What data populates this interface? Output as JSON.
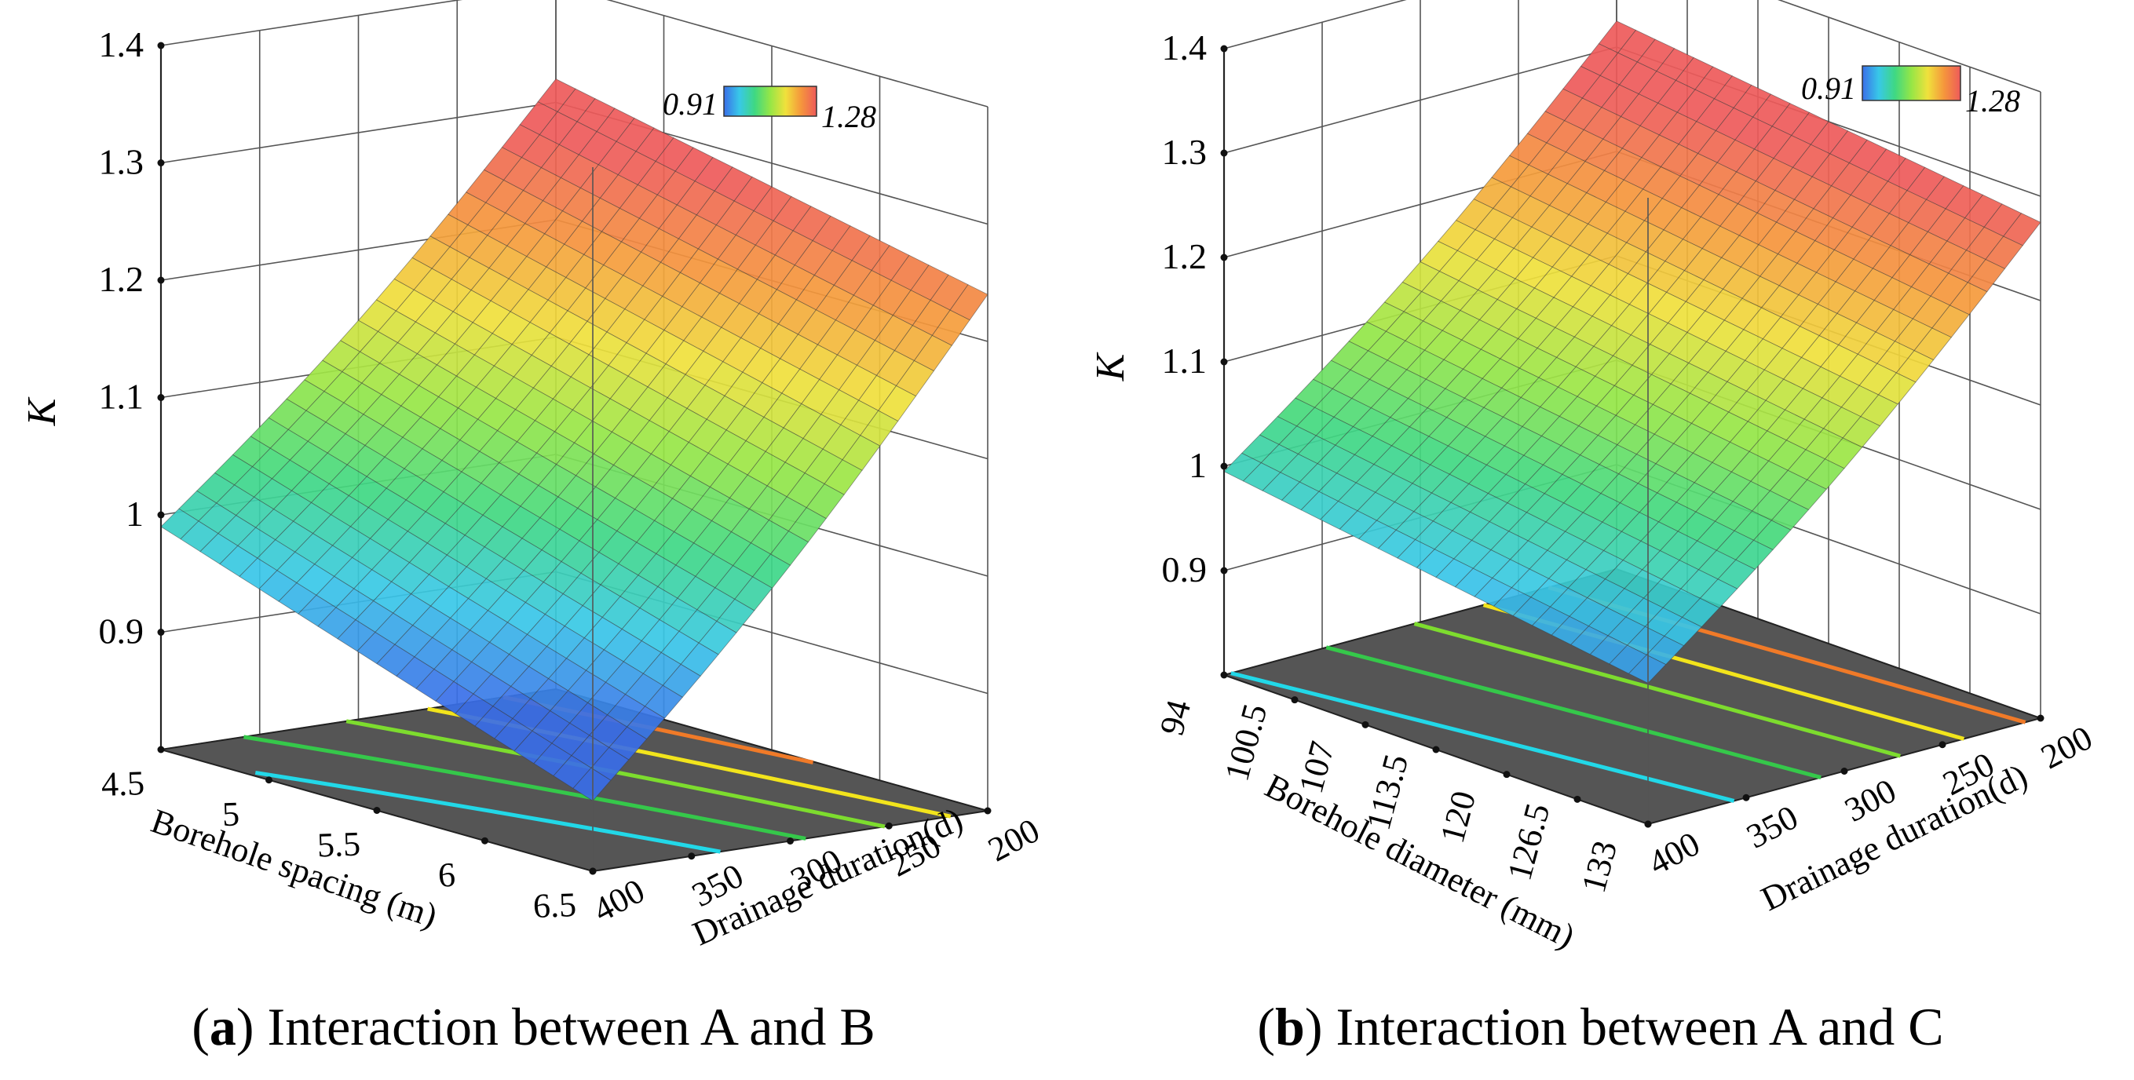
{
  "colors": {
    "surface_low": "#3a6ee8",
    "surface_mid": "#3fd882",
    "surface_high": "#ee5a5a",
    "floor": "#555555",
    "grid": "#555555"
  },
  "chart_data": [
    {
      "type": "surface3d",
      "panel_label": "a",
      "caption": "Interaction between A and B",
      "zlabel": "K",
      "x": {
        "label": "Borehole spacing (m)",
        "ticks": [
          "4.5",
          "5",
          "5.5",
          "6",
          "6.5"
        ],
        "range": [
          4.5,
          6.5
        ]
      },
      "y": {
        "label": "Drainage duration(d)",
        "ticks": [
          "400",
          "350",
          "300",
          "250",
          "200"
        ],
        "range": [
          400,
          200
        ]
      },
      "z": {
        "ticks": [
          "0.9",
          "1",
          "1.1",
          "1.2",
          "1.3",
          "1.4"
        ],
        "range": [
          0.8,
          1.4
        ]
      },
      "colorbar": {
        "min_label": "0.91",
        "max_label": "1.28",
        "min": 0.91,
        "max": 1.28
      },
      "surface_corners": {
        "x_min_y_start": 0.99,
        "x_max_y_start": 0.86,
        "x_min_y_end": 1.32,
        "x_max_y_end": 1.24
      },
      "contours": [
        {
          "level": 0.97,
          "color": "#22d8e8"
        },
        {
          "level": 1.05,
          "color": "#35c84a"
        },
        {
          "level": 1.13,
          "color": "#7ddc2e"
        },
        {
          "level": 1.2,
          "color": "#f2e41c"
        },
        {
          "level": 1.27,
          "color": "#f07a28"
        }
      ]
    },
    {
      "type": "surface3d",
      "panel_label": "b",
      "caption": "Interaction between A and C",
      "zlabel": "K",
      "x": {
        "label": "Borehole diameter (mm)",
        "ticks": [
          "94",
          "100.5",
          "107",
          "113.5",
          "120",
          "126.5",
          "133"
        ],
        "range": [
          94,
          133
        ]
      },
      "y": {
        "label": "Drainage duration(d)",
        "ticks": [
          "400",
          "350",
          "300",
          "250",
          "200"
        ],
        "range": [
          400,
          200
        ]
      },
      "z": {
        "ticks": [
          "0.9",
          "1",
          "1.1",
          "1.2",
          "1.3",
          "1.4"
        ],
        "range": [
          0.8,
          1.4
        ]
      },
      "colorbar": {
        "min_label": "0.91",
        "max_label": "1.28",
        "min": 0.91,
        "max": 1.28
      },
      "surface_corners": {
        "x_min_y_start": 0.995,
        "x_max_y_start": 0.935,
        "x_min_y_end": 1.325,
        "x_max_y_end": 1.275
      },
      "contours": [
        {
          "level": 1.0,
          "color": "#22d8e8"
        },
        {
          "level": 1.07,
          "color": "#35c84a"
        },
        {
          "level": 1.14,
          "color": "#7ddc2e"
        },
        {
          "level": 1.2,
          "color": "#f2e41c"
        },
        {
          "level": 1.26,
          "color": "#f07a28"
        }
      ]
    }
  ]
}
